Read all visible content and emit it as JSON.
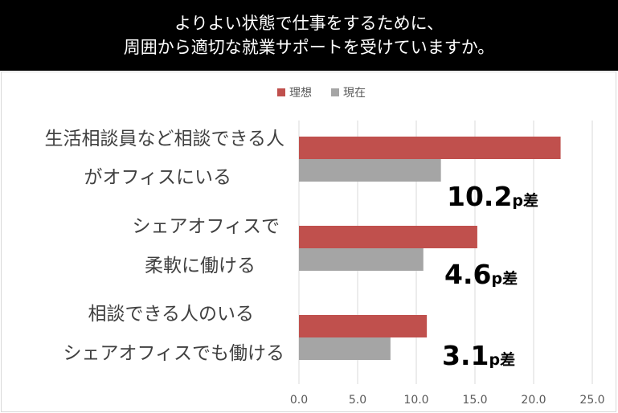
{
  "title": {
    "line1": "よりよい状態で仕事をするために、",
    "line2": "周囲から適切な就業サポートを受けていますか。"
  },
  "chart_data": {
    "type": "bar",
    "orientation": "horizontal",
    "categories": [
      {
        "line1": "生活相談員など相談できる人",
        "line2": "がオフィスにいる"
      },
      {
        "line1": "シェアオフィスで",
        "line2": "柔軟に働ける"
      },
      {
        "line1": "相談できる人のいる",
        "line2": "シェアオフィスでも働ける"
      }
    ],
    "series": [
      {
        "name": "理想",
        "color": "#c0504d",
        "values": [
          22.3,
          15.2,
          10.9
        ]
      },
      {
        "name": "現在",
        "color": "#a5a5a5",
        "values": [
          12.1,
          10.6,
          7.8
        ]
      }
    ],
    "differences": [
      {
        "value": "10.2",
        "unit": "p差"
      },
      {
        "value": "4.6",
        "unit": "p差"
      },
      {
        "value": "3.1",
        "unit": "p差"
      }
    ],
    "xlim": [
      0,
      25
    ],
    "xticks": [
      "0.0",
      "5.0",
      "10.0",
      "15.0",
      "20.0",
      "25.0"
    ],
    "legend_position": "top-center",
    "grid": true,
    "gridline_color": "#d9d9d9"
  }
}
